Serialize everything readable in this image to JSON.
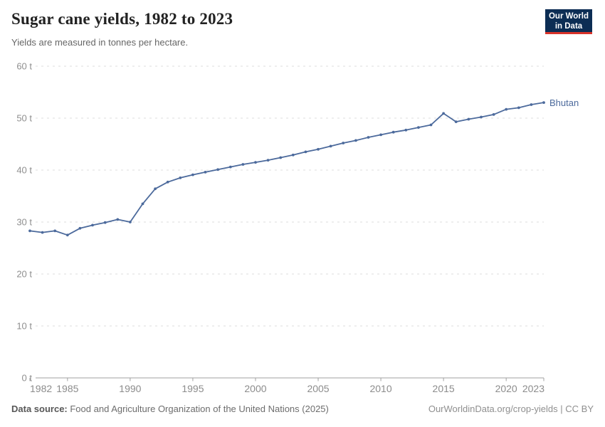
{
  "header": {
    "title": "Sugar cane yields, 1982 to 2023",
    "subtitle": "Yields are measured in tonnes per hectare.",
    "logo": {
      "line1": "Our World",
      "line2": "in Data"
    }
  },
  "chart_data": {
    "type": "line",
    "title": "Sugar cane yields, 1982 to 2023",
    "ylabel": "tonnes per hectare",
    "xlabel": "",
    "grid": "horizontal-dashed",
    "legend_position": "end-of-line-label",
    "ylim": [
      0,
      60
    ],
    "x_range": [
      1982,
      2023
    ],
    "years": [
      1982,
      1983,
      1984,
      1985,
      1986,
      1987,
      1988,
      1989,
      1990,
      1991,
      1992,
      1993,
      1994,
      1995,
      1996,
      1997,
      1998,
      1999,
      2000,
      2001,
      2002,
      2003,
      2004,
      2005,
      2006,
      2007,
      2008,
      2009,
      2010,
      2011,
      2012,
      2013,
      2014,
      2015,
      2016,
      2017,
      2018,
      2019,
      2020,
      2021,
      2022,
      2023
    ],
    "series": [
      {
        "name": "Bhutan",
        "color": "#4C6A9C",
        "values": [
          28.3,
          28.0,
          28.3,
          27.5,
          28.8,
          29.4,
          29.9,
          30.5,
          30.0,
          33.5,
          36.4,
          37.7,
          38.5,
          39.1,
          39.6,
          40.1,
          40.6,
          41.1,
          41.5,
          41.9,
          42.4,
          42.9,
          43.5,
          44.0,
          44.6,
          45.2,
          45.7,
          46.3,
          46.8,
          47.3,
          47.7,
          48.2,
          48.7,
          50.9,
          49.3,
          49.8,
          50.2,
          50.7,
          51.7,
          52.0,
          52.6,
          53.0
        ]
      }
    ],
    "yticks": [
      {
        "value": 0,
        "label": "0 t"
      },
      {
        "value": 10,
        "label": "10 t"
      },
      {
        "value": 20,
        "label": "20 t"
      },
      {
        "value": 30,
        "label": "30 t"
      },
      {
        "value": 40,
        "label": "40 t"
      },
      {
        "value": 50,
        "label": "50 t"
      },
      {
        "value": 60,
        "label": "60 t"
      }
    ],
    "xticks": [
      {
        "value": 1982,
        "label": "1982"
      },
      {
        "value": 1985,
        "label": "1985"
      },
      {
        "value": 1990,
        "label": "1990"
      },
      {
        "value": 1995,
        "label": "1995"
      },
      {
        "value": 2000,
        "label": "2000"
      },
      {
        "value": 2005,
        "label": "2005"
      },
      {
        "value": 2010,
        "label": "2010"
      },
      {
        "value": 2015,
        "label": "2015"
      },
      {
        "value": 2020,
        "label": "2020"
      },
      {
        "value": 2023,
        "label": "2023"
      }
    ]
  },
  "footer": {
    "source_label": "Data source:",
    "source_text": " Food and Agriculture Organization of the United Nations (2025)",
    "credit": "OurWorldinData.org/crop-yields | CC BY"
  },
  "colors": {
    "line": "#4C6A9C",
    "gridline": "#dcdcdc",
    "axis": "#a1a1a1",
    "logo_bg": "#0c2d54",
    "logo_red": "#d8332a"
  }
}
